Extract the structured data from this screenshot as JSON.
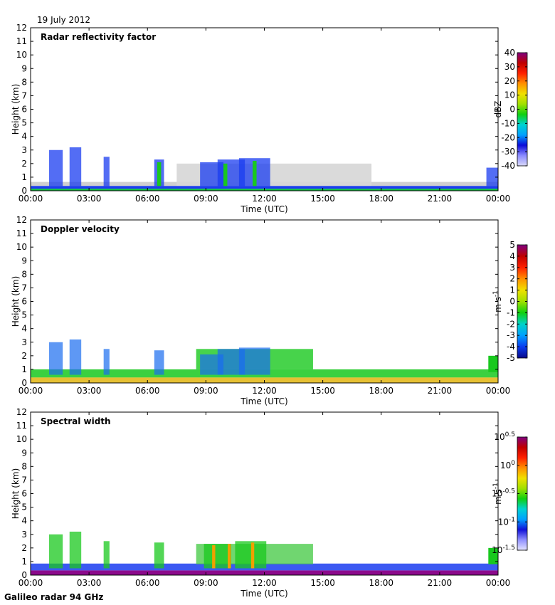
{
  "date_label": "19 July 2012",
  "footer": "Galileo radar 94 GHz",
  "colors": {
    "clear": "#dcdcdc",
    "deep_blue": "#0a1fd8",
    "green": "#19c81e",
    "yellow": "#f0d800",
    "red": "#e01010",
    "purple": "#8b0a8b"
  },
  "chart_data": [
    {
      "type": "heatmap",
      "title": "Radar reflectivity factor",
      "xlabel": "Time (UTC)",
      "ylabel": "Height (km)",
      "xlim": [
        0,
        24
      ],
      "ylim": [
        0,
        12
      ],
      "x_tick_labels": [
        "00:00",
        "03:00",
        "06:00",
        "09:00",
        "12:00",
        "15:00",
        "18:00",
        "21:00",
        "00:00"
      ],
      "y_ticks": [
        0,
        1,
        2,
        3,
        4,
        5,
        6,
        7,
        8,
        9,
        10,
        11,
        12
      ],
      "colorbar": {
        "label": "dBZ",
        "min": -40,
        "max": 40,
        "ticks": [
          "40",
          "30",
          "20",
          "10",
          "0",
          "-10",
          "-20",
          "-30",
          "-40"
        ]
      }
    },
    {
      "type": "heatmap",
      "title": "Doppler velocity",
      "xlabel": "Time (UTC)",
      "ylabel": "Height (km)",
      "xlim": [
        0,
        24
      ],
      "ylim": [
        0,
        12
      ],
      "x_tick_labels": [
        "00:00",
        "03:00",
        "06:00",
        "09:00",
        "12:00",
        "15:00",
        "18:00",
        "21:00",
        "00:00"
      ],
      "y_ticks": [
        0,
        1,
        2,
        3,
        4,
        5,
        6,
        7,
        8,
        9,
        10,
        11,
        12
      ],
      "colorbar": {
        "label": "m s-1",
        "min": -5,
        "max": 5,
        "ticks": [
          "5",
          "4",
          "3",
          "2",
          "1",
          "0",
          "-1",
          "-2",
          "-3",
          "-4",
          "-5"
        ]
      }
    },
    {
      "type": "heatmap",
      "title": "Spectral width",
      "xlabel": "Time (UTC)",
      "ylabel": "Height (km)",
      "xlim": [
        0,
        24
      ],
      "ylim": [
        0,
        12
      ],
      "x_tick_labels": [
        "00:00",
        "03:00",
        "06:00",
        "09:00",
        "12:00",
        "15:00",
        "18:00",
        "21:00",
        "00:00"
      ],
      "y_ticks": [
        0,
        1,
        2,
        3,
        4,
        5,
        6,
        7,
        8,
        9,
        10,
        11,
        12
      ],
      "colorbar": {
        "label": "m s-1",
        "scale": "log",
        "min_exp": -1.5,
        "max_exp": 0.5,
        "ticks": [
          "10^0.5",
          "10^0",
          "10^-0.5",
          "10^-1",
          "10^-1.5"
        ]
      }
    }
  ]
}
